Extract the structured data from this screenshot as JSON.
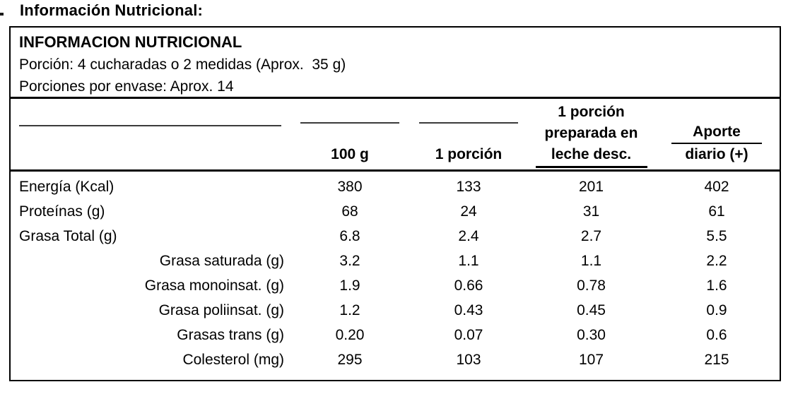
{
  "page": {
    "title": "Información Nutricional:"
  },
  "table": {
    "title": "INFORMACION NUTRICIONAL",
    "portion_line": "Porción: 4 cucharadas o 2 medidas (Aprox.  35 g)",
    "portions_per_package_line": "Porciones por envase: Aprox. 14",
    "columns": {
      "col_100g": "100 g",
      "col_1porcion": "1 porción",
      "col_preparada": [
        "1 porción",
        "preparada en",
        "leche desc."
      ],
      "col_aporte": [
        "Aporte",
        "diario (+)"
      ]
    },
    "rows": [
      {
        "label": "Energía (Kcal)",
        "values": [
          "380",
          "133",
          "201",
          "402"
        ]
      },
      {
        "label": "Proteínas (g)",
        "values": [
          "68",
          "24",
          "31",
          "61"
        ]
      },
      {
        "label": "Grasa Total (g)",
        "values": [
          "6.8",
          "2.4",
          "2.7",
          "5.5"
        ]
      },
      {
        "label": "Grasa saturada (g)",
        "values": [
          "3.2",
          "1.1",
          "1.1",
          "2.2"
        ]
      },
      {
        "label": "Grasa monoinsat. (g)",
        "values": [
          "1.9",
          "0.66",
          "0.78",
          "1.6"
        ]
      },
      {
        "label": "Grasa poliinsat. (g)",
        "values": [
          "1.2",
          "0.43",
          "0.45",
          "0.9"
        ]
      },
      {
        "label": "Grasas trans (g)",
        "values": [
          "0.20",
          "0.07",
          "0.30",
          "0.6"
        ]
      },
      {
        "label": "Colesterol (mg)",
        "values": [
          "295",
          "103",
          "107",
          "215"
        ]
      }
    ],
    "colors": {
      "text": "#000000",
      "border": "#000000",
      "thin_rule": "#3b3b3b",
      "background": "#ffffff"
    }
  }
}
